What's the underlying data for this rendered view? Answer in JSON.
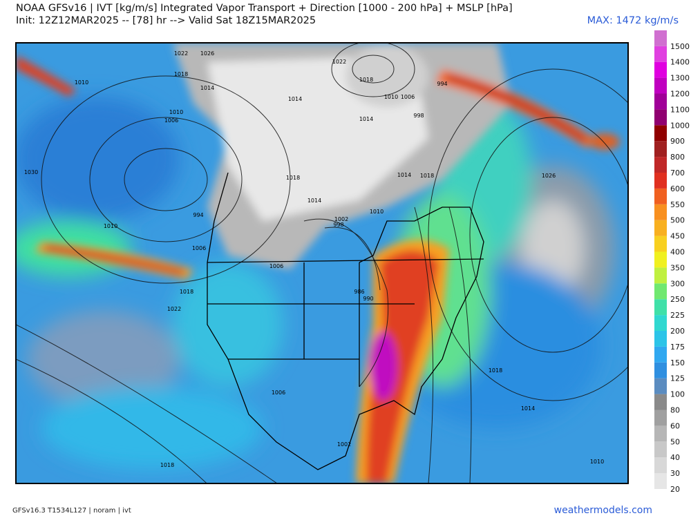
{
  "header": {
    "title": "NOAA GFSv16 | IVT [kg/m/s] Integrated Vapor Transport + Direction [1000 - 200 hPa] + MSLP [hPa]",
    "init": "Init: 12Z12MAR2025 -- [78] hr --> Valid Sat 18Z15MAR2025",
    "max": "MAX: 1472 kg/m/s"
  },
  "colorbar": {
    "levels": [
      {
        "label": "20",
        "color": "#e6e6e6"
      },
      {
        "label": "30",
        "color": "#d8d8d8"
      },
      {
        "label": "40",
        "color": "#c8c8c8"
      },
      {
        "label": "50",
        "color": "#b6b6b6"
      },
      {
        "label": "60",
        "color": "#a0a0a0"
      },
      {
        "label": "80",
        "color": "#8a8a8a"
      },
      {
        "label": "100",
        "color": "#5b8cc0"
      },
      {
        "label": "125",
        "color": "#2f8fe0"
      },
      {
        "label": "150",
        "color": "#30a8f0"
      },
      {
        "label": "175",
        "color": "#2cc4e8"
      },
      {
        "label": "200",
        "color": "#30d8d0"
      },
      {
        "label": "225",
        "color": "#40e0a8"
      },
      {
        "label": "250",
        "color": "#70e870"
      },
      {
        "label": "300",
        "color": "#c0f040"
      },
      {
        "label": "350",
        "color": "#f0f020"
      },
      {
        "label": "400",
        "color": "#f8d020"
      },
      {
        "label": "450",
        "color": "#f8b020"
      },
      {
        "label": "500",
        "color": "#f89020"
      },
      {
        "label": "550",
        "color": "#f06020"
      },
      {
        "label": "600",
        "color": "#e03020"
      },
      {
        "label": "700",
        "color": "#c02828"
      },
      {
        "label": "800",
        "color": "#a02020"
      },
      {
        "label": "900",
        "color": "#900000"
      },
      {
        "label": "1000",
        "color": "#900070"
      },
      {
        "label": "1100",
        "color": "#a00098"
      },
      {
        "label": "1200",
        "color": "#c000c0"
      },
      {
        "label": "1300",
        "color": "#e000e0"
      },
      {
        "label": "1400",
        "color": "#e040e0"
      },
      {
        "label": "1500",
        "color": "#d070d0"
      }
    ]
  },
  "map": {
    "pressure_labels": [
      "1022",
      "1026",
      "1018",
      "1014",
      "1010",
      "1006",
      "1010",
      "1030",
      "994",
      "1010",
      "1006",
      "1018",
      "1022",
      "1018",
      "1014",
      "1002",
      "998",
      "1010",
      "1006",
      "986",
      "990",
      "1006",
      "1002",
      "1018",
      "1022",
      "1018",
      "1014",
      "1010",
      "1006",
      "1014",
      "998",
      "994",
      "1014",
      "1018",
      "1026",
      "1018",
      "1014",
      "1010"
    ]
  },
  "footer": {
    "model": "GFSv16.3 T1534L127 | noram | ivt",
    "site": "weathermodels.com"
  }
}
